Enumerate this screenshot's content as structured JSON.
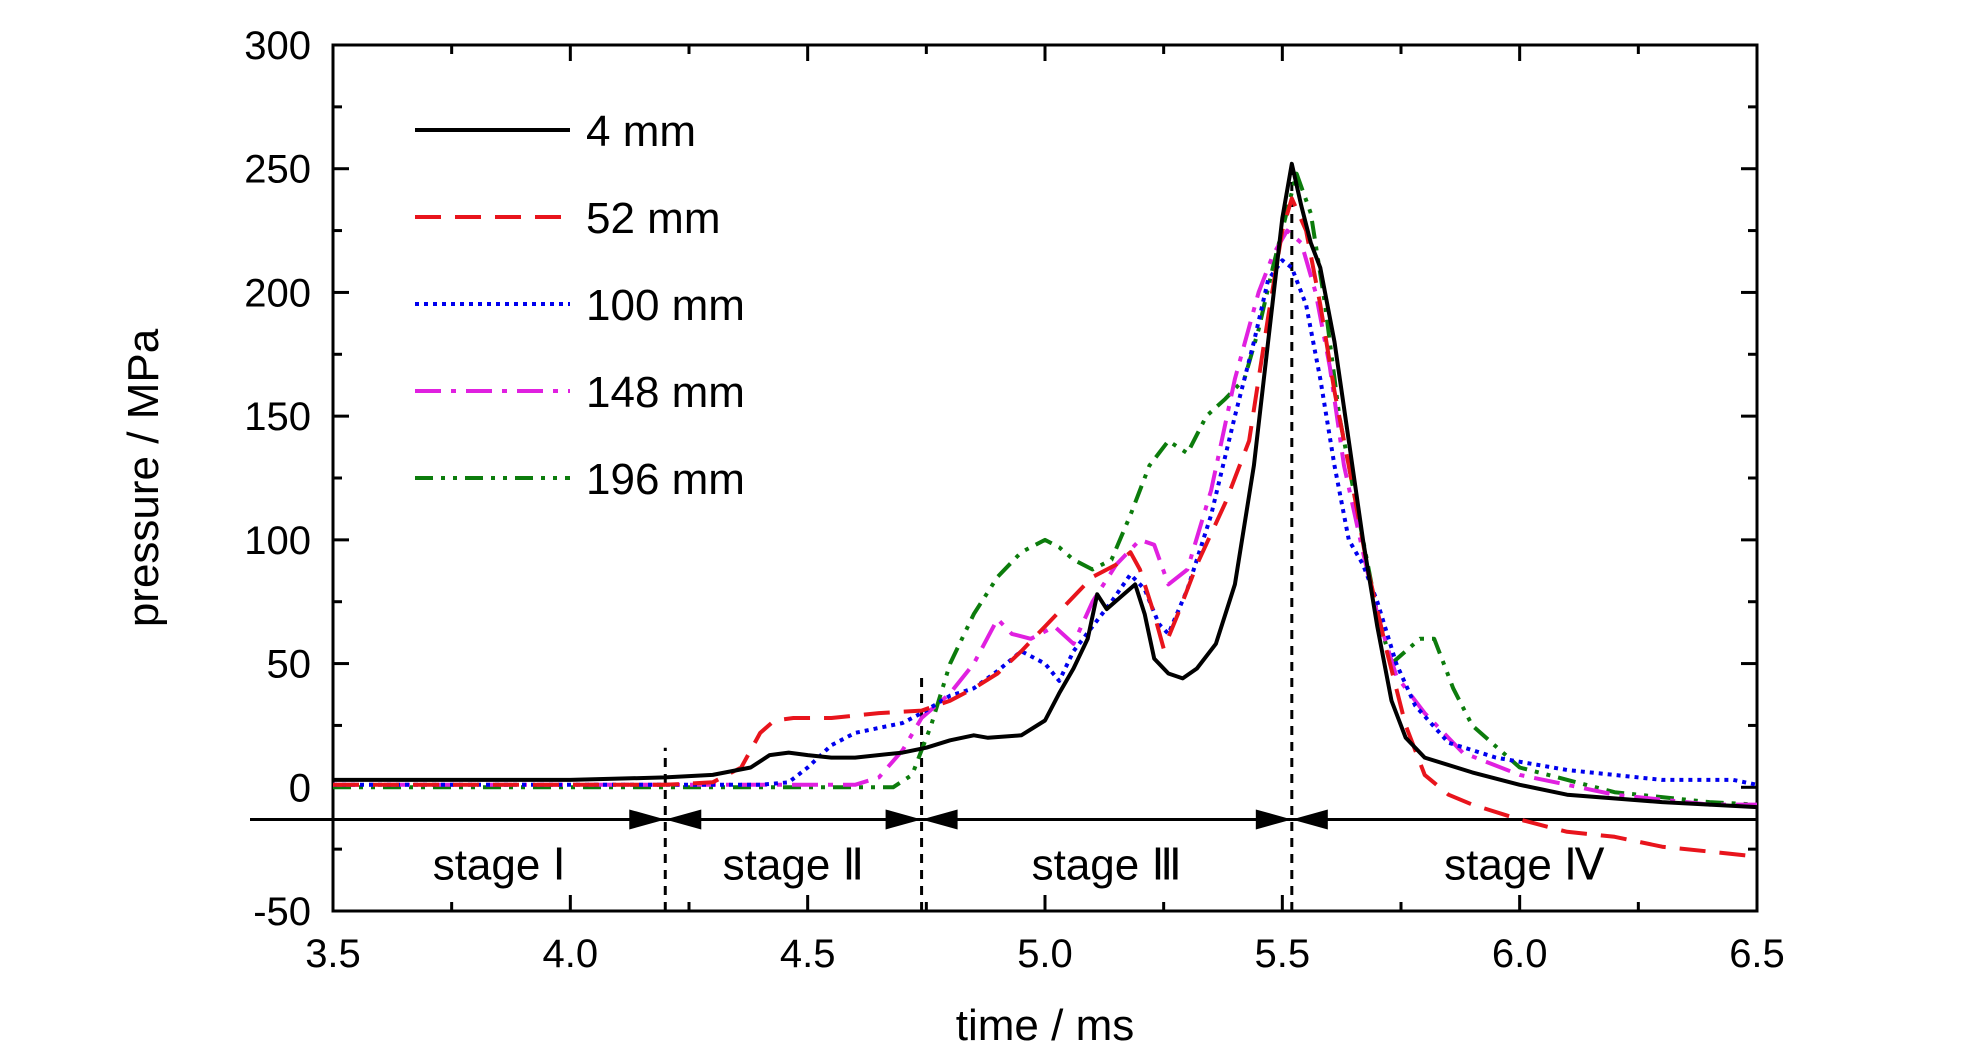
{
  "chart_data": {
    "type": "line",
    "xlabel": "time / ms",
    "ylabel": "pressure / MPa",
    "xlim": [
      3.5,
      6.5
    ],
    "ylim": [
      -50,
      300
    ],
    "xticks": [
      "3.5",
      "4.0",
      "4.5",
      "5.0",
      "5.5",
      "6.0",
      "6.5"
    ],
    "yticks": [
      "-50",
      "0",
      "50",
      "100",
      "150",
      "200",
      "250",
      "300"
    ],
    "legend_position": "top-left",
    "grid": false,
    "stage_boundaries": [
      4.2,
      4.74,
      5.52
    ],
    "stages": [
      "stage Ⅰ",
      "stage Ⅱ",
      "stage Ⅲ",
      "stage Ⅳ"
    ],
    "series": [
      {
        "name": "4 mm",
        "color": "#000000",
        "style": "solid",
        "points": [
          [
            3.5,
            3
          ],
          [
            3.8,
            3
          ],
          [
            4.0,
            3
          ],
          [
            4.2,
            4
          ],
          [
            4.3,
            5
          ],
          [
            4.38,
            8
          ],
          [
            4.42,
            13
          ],
          [
            4.46,
            14
          ],
          [
            4.5,
            13
          ],
          [
            4.55,
            12
          ],
          [
            4.6,
            12
          ],
          [
            4.7,
            14
          ],
          [
            4.75,
            16
          ],
          [
            4.8,
            19
          ],
          [
            4.85,
            21
          ],
          [
            4.88,
            20
          ],
          [
            4.95,
            21
          ],
          [
            5.0,
            27
          ],
          [
            5.03,
            38
          ],
          [
            5.06,
            48
          ],
          [
            5.09,
            60
          ],
          [
            5.11,
            78
          ],
          [
            5.13,
            72
          ],
          [
            5.16,
            77
          ],
          [
            5.19,
            82
          ],
          [
            5.21,
            70
          ],
          [
            5.23,
            52
          ],
          [
            5.26,
            46
          ],
          [
            5.29,
            44
          ],
          [
            5.32,
            48
          ],
          [
            5.36,
            58
          ],
          [
            5.4,
            82
          ],
          [
            5.44,
            130
          ],
          [
            5.47,
            180
          ],
          [
            5.5,
            230
          ],
          [
            5.52,
            252
          ],
          [
            5.54,
            235
          ],
          [
            5.56,
            220
          ],
          [
            5.58,
            210
          ],
          [
            5.61,
            180
          ],
          [
            5.64,
            140
          ],
          [
            5.67,
            100
          ],
          [
            5.7,
            65
          ],
          [
            5.73,
            35
          ],
          [
            5.76,
            20
          ],
          [
            5.8,
            12
          ],
          [
            5.9,
            6
          ],
          [
            6.0,
            1
          ],
          [
            6.1,
            -3
          ],
          [
            6.3,
            -6
          ],
          [
            6.5,
            -8
          ]
        ]
      },
      {
        "name": "52 mm",
        "color": "#e8141c",
        "style": "dashed",
        "points": [
          [
            3.5,
            1
          ],
          [
            3.9,
            1
          ],
          [
            4.2,
            1
          ],
          [
            4.3,
            2
          ],
          [
            4.36,
            8
          ],
          [
            4.4,
            22
          ],
          [
            4.43,
            27
          ],
          [
            4.47,
            28
          ],
          [
            4.55,
            28
          ],
          [
            4.65,
            30
          ],
          [
            4.74,
            31
          ],
          [
            4.8,
            35
          ],
          [
            4.85,
            40
          ],
          [
            4.9,
            46
          ],
          [
            4.95,
            55
          ],
          [
            5.0,
            65
          ],
          [
            5.05,
            75
          ],
          [
            5.1,
            85
          ],
          [
            5.15,
            90
          ],
          [
            5.18,
            95
          ],
          [
            5.2,
            88
          ],
          [
            5.23,
            70
          ],
          [
            5.25,
            56
          ],
          [
            5.28,
            70
          ],
          [
            5.32,
            90
          ],
          [
            5.38,
            115
          ],
          [
            5.43,
            140
          ],
          [
            5.47,
            190
          ],
          [
            5.5,
            225
          ],
          [
            5.52,
            238
          ],
          [
            5.55,
            225
          ],
          [
            5.58,
            195
          ],
          [
            5.61,
            160
          ],
          [
            5.65,
            120
          ],
          [
            5.68,
            88
          ],
          [
            5.72,
            55
          ],
          [
            5.76,
            25
          ],
          [
            5.8,
            5
          ],
          [
            5.85,
            -3
          ],
          [
            5.9,
            -7
          ],
          [
            6.0,
            -13
          ],
          [
            6.1,
            -18
          ],
          [
            6.2,
            -20
          ],
          [
            6.3,
            -24
          ],
          [
            6.4,
            -26
          ],
          [
            6.5,
            -28
          ]
        ]
      },
      {
        "name": "100 mm",
        "color": "#0000ee",
        "style": "dotted",
        "points": [
          [
            3.5,
            1
          ],
          [
            4.0,
            1
          ],
          [
            4.4,
            1
          ],
          [
            4.46,
            2
          ],
          [
            4.5,
            8
          ],
          [
            4.55,
            17
          ],
          [
            4.6,
            22
          ],
          [
            4.65,
            24
          ],
          [
            4.7,
            26
          ],
          [
            4.74,
            30
          ],
          [
            4.8,
            37
          ],
          [
            4.85,
            40
          ],
          [
            4.9,
            47
          ],
          [
            4.95,
            55
          ],
          [
            5.0,
            50
          ],
          [
            5.03,
            43
          ],
          [
            5.06,
            55
          ],
          [
            5.1,
            65
          ],
          [
            5.14,
            75
          ],
          [
            5.18,
            86
          ],
          [
            5.21,
            80
          ],
          [
            5.24,
            66
          ],
          [
            5.26,
            62
          ],
          [
            5.3,
            80
          ],
          [
            5.35,
            110
          ],
          [
            5.4,
            150
          ],
          [
            5.44,
            180
          ],
          [
            5.47,
            205
          ],
          [
            5.5,
            213
          ],
          [
            5.52,
            210
          ],
          [
            5.55,
            195
          ],
          [
            5.58,
            165
          ],
          [
            5.61,
            130
          ],
          [
            5.64,
            100
          ],
          [
            5.67,
            90
          ],
          [
            5.7,
            75
          ],
          [
            5.74,
            50
          ],
          [
            5.78,
            33
          ],
          [
            5.85,
            18
          ],
          [
            5.95,
            12
          ],
          [
            6.1,
            7
          ],
          [
            6.3,
            3
          ],
          [
            6.45,
            3
          ],
          [
            6.5,
            1
          ]
        ]
      },
      {
        "name": "148 mm",
        "color": "#e020e0",
        "style": "dashdot",
        "points": [
          [
            3.5,
            1
          ],
          [
            4.0,
            1
          ],
          [
            4.5,
            1
          ],
          [
            4.6,
            1
          ],
          [
            4.65,
            4
          ],
          [
            4.7,
            15
          ],
          [
            4.74,
            28
          ],
          [
            4.8,
            38
          ],
          [
            4.85,
            50
          ],
          [
            4.9,
            68
          ],
          [
            4.93,
            62
          ],
          [
            4.97,
            60
          ],
          [
            5.02,
            65
          ],
          [
            5.06,
            58
          ],
          [
            5.1,
            75
          ],
          [
            5.15,
            90
          ],
          [
            5.2,
            100
          ],
          [
            5.23,
            98
          ],
          [
            5.26,
            82
          ],
          [
            5.3,
            88
          ],
          [
            5.35,
            120
          ],
          [
            5.4,
            165
          ],
          [
            5.45,
            200
          ],
          [
            5.48,
            215
          ],
          [
            5.51,
            225
          ],
          [
            5.54,
            220
          ],
          [
            5.57,
            200
          ],
          [
            5.6,
            170
          ],
          [
            5.63,
            130
          ],
          [
            5.67,
            95
          ],
          [
            5.7,
            70
          ],
          [
            5.74,
            45
          ],
          [
            5.8,
            30
          ],
          [
            5.88,
            14
          ],
          [
            6.0,
            5
          ],
          [
            6.2,
            -3
          ],
          [
            6.4,
            -7
          ],
          [
            6.5,
            -7
          ]
        ]
      },
      {
        "name": "196 mm",
        "color": "#0c7c0c",
        "style": "dashdotdot",
        "points": [
          [
            3.5,
            0
          ],
          [
            4.0,
            0
          ],
          [
            4.5,
            0
          ],
          [
            4.68,
            0
          ],
          [
            4.72,
            5
          ],
          [
            4.76,
            25
          ],
          [
            4.8,
            50
          ],
          [
            4.85,
            70
          ],
          [
            4.9,
            85
          ],
          [
            4.95,
            95
          ],
          [
            5.0,
            100
          ],
          [
            5.03,
            97
          ],
          [
            5.06,
            92
          ],
          [
            5.1,
            88
          ],
          [
            5.14,
            92
          ],
          [
            5.18,
            110
          ],
          [
            5.22,
            130
          ],
          [
            5.26,
            140
          ],
          [
            5.3,
            135
          ],
          [
            5.34,
            150
          ],
          [
            5.38,
            157
          ],
          [
            5.42,
            165
          ],
          [
            5.45,
            185
          ],
          [
            5.48,
            210
          ],
          [
            5.51,
            233
          ],
          [
            5.53,
            248
          ],
          [
            5.56,
            232
          ],
          [
            5.59,
            195
          ],
          [
            5.62,
            150
          ],
          [
            5.66,
            110
          ],
          [
            5.7,
            70
          ],
          [
            5.73,
            50
          ],
          [
            5.76,
            55
          ],
          [
            5.79,
            60
          ],
          [
            5.82,
            60
          ],
          [
            5.86,
            40
          ],
          [
            5.9,
            25
          ],
          [
            6.0,
            8
          ],
          [
            6.2,
            -2
          ],
          [
            6.4,
            -6
          ],
          [
            6.5,
            -7
          ]
        ]
      }
    ]
  }
}
